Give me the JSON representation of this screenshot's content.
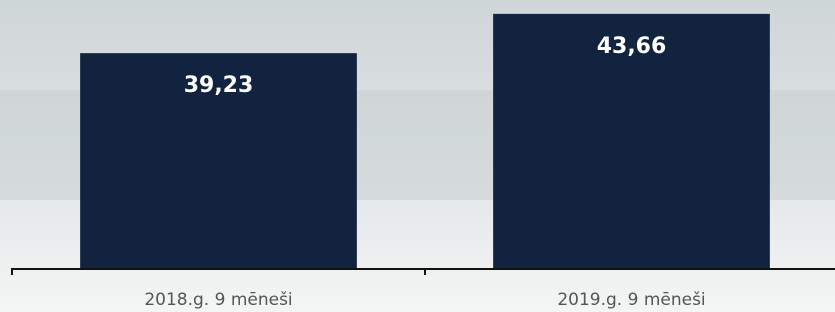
{
  "chart_data": {
    "type": "bar",
    "categories": [
      "2018.g. 9 mēneši",
      "2019.g. 9 mēneši"
    ],
    "values": [
      39.23,
      43.66
    ],
    "value_labels": [
      "39,23",
      "43,66"
    ],
    "color": "#12233f",
    "ylim": [
      15,
      45
    ]
  }
}
